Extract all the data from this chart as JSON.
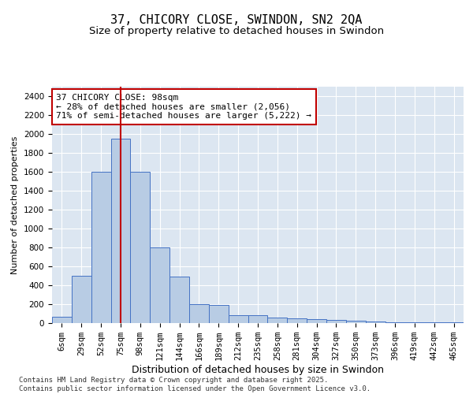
{
  "title": "37, CHICORY CLOSE, SWINDON, SN2 2QA",
  "subtitle": "Size of property relative to detached houses in Swindon",
  "xlabel": "Distribution of detached houses by size in Swindon",
  "ylabel": "Number of detached properties",
  "categories": [
    "6sqm",
    "29sqm",
    "52sqm",
    "75sqm",
    "98sqm",
    "121sqm",
    "144sqm",
    "166sqm",
    "189sqm",
    "212sqm",
    "235sqm",
    "258sqm",
    "281sqm",
    "304sqm",
    "327sqm",
    "350sqm",
    "373sqm",
    "396sqm",
    "419sqm",
    "442sqm",
    "465sqm"
  ],
  "values": [
    70,
    500,
    1600,
    1950,
    1600,
    800,
    490,
    200,
    190,
    80,
    80,
    60,
    50,
    40,
    30,
    25,
    20,
    10,
    5,
    5,
    5
  ],
  "bar_color": "#b8cce4",
  "bar_edge_color": "#4472c4",
  "highlight_index": 3,
  "highlight_line_color": "#c00000",
  "annotation_line1": "37 CHICORY CLOSE: 98sqm",
  "annotation_line2": "← 28% of detached houses are smaller (2,056)",
  "annotation_line3": "71% of semi-detached houses are larger (5,222) →",
  "annotation_box_color": "#ffffff",
  "annotation_box_edge_color": "#c00000",
  "ylim": [
    0,
    2500
  ],
  "yticks": [
    0,
    200,
    400,
    600,
    800,
    1000,
    1200,
    1400,
    1600,
    1800,
    2000,
    2200,
    2400
  ],
  "bg_color": "#dce6f1",
  "footer": "Contains HM Land Registry data © Crown copyright and database right 2025.\nContains public sector information licensed under the Open Government Licence v3.0.",
  "title_fontsize": 11,
  "subtitle_fontsize": 9.5,
  "xlabel_fontsize": 9,
  "ylabel_fontsize": 8,
  "tick_fontsize": 7.5,
  "annotation_fontsize": 8,
  "footer_fontsize": 6.5
}
